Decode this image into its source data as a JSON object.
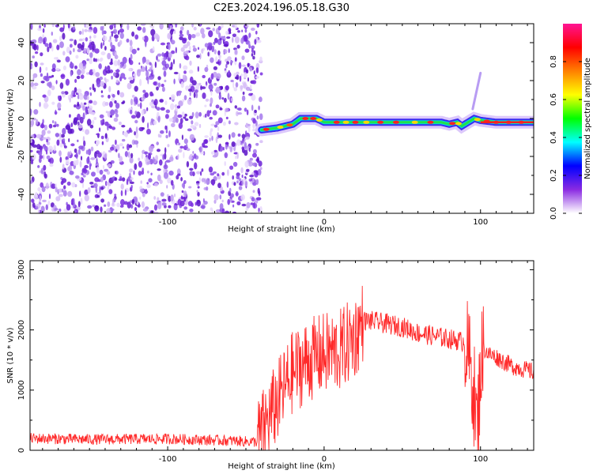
{
  "title": "C2E3.2024.196.05.18.G30",
  "chart_data": [
    {
      "type": "heatmap",
      "xlabel": "Height of straight line (km)",
      "ylabel": "Frequency (Hz)",
      "xlim": [
        -188,
        134
      ],
      "ylim": [
        -50,
        50
      ],
      "xticks": [
        -100,
        0,
        100
      ],
      "yticks": [
        -40,
        -20,
        0,
        20,
        40
      ],
      "noise_region_x": [
        -188,
        -40
      ],
      "ridge": {
        "x": [
          -40,
          -30,
          -20,
          -15,
          -5,
          0,
          5,
          20,
          40,
          60,
          75,
          80,
          85,
          88,
          92,
          96,
          100,
          110,
          134
        ],
        "freq": [
          -6,
          -5,
          -3,
          0,
          0,
          -2,
          -2,
          -2,
          -2,
          -2,
          -2,
          -3,
          -2,
          -4,
          -2,
          0,
          -1,
          -2,
          -2
        ]
      },
      "spike": {
        "x": [
          95,
          100
        ],
        "freq": [
          5,
          24
        ]
      },
      "colorbar": {
        "label": "Normalized spectral amplitude",
        "ticks": [
          "0.0",
          "0.2",
          "0.4",
          "0.6",
          "0.8"
        ],
        "range": [
          0,
          1
        ],
        "colors": [
          "#ffffff",
          "#8a2be2",
          "#0000ff",
          "#00ffff",
          "#00ff00",
          "#ffff00",
          "#ff8000",
          "#ff0000",
          "#ff1493"
        ]
      }
    },
    {
      "type": "line",
      "xlabel": "Height of straight line (km)",
      "ylabel": "SNR (10 * v/v)",
      "xlim": [
        -188,
        134
      ],
      "ylim": [
        0,
        3150
      ],
      "xticks": [
        -100,
        0,
        100
      ],
      "yticks": [
        0,
        1000,
        2000,
        3000
      ],
      "color": "#ff2a2a",
      "series": [
        {
          "x": [
            -188,
            -150,
            -100,
            -60,
            -43,
            -30,
            -20,
            -10,
            0,
            10,
            20,
            25,
            30,
            40,
            50,
            60,
            80,
            90,
            95,
            98,
            100,
            102,
            105,
            110,
            120,
            134
          ],
          "values": [
            200,
            180,
            190,
            160,
            140,
            800,
            1300,
            1500,
            1600,
            1650,
            1900,
            2150,
            2150,
            2100,
            2050,
            1950,
            1850,
            1800,
            1200,
            300,
            1400,
            1700,
            1600,
            1550,
            1400,
            1300
          ]
        }
      ]
    }
  ]
}
